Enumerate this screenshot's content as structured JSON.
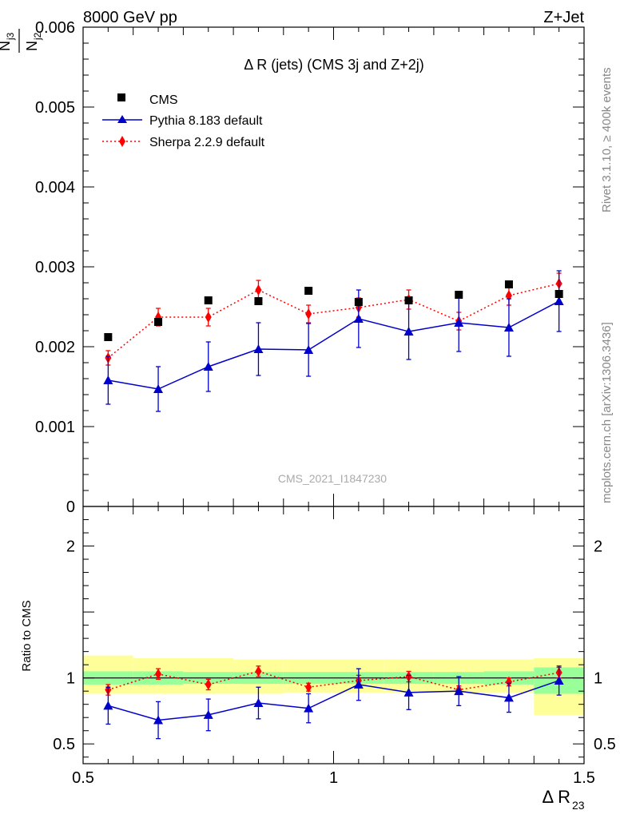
{
  "header": {
    "left": "8000 GeV pp",
    "right": "Z+Jet"
  },
  "side_labels": {
    "rivet": "Rivet 3.1.10, ≥ 400k events",
    "mcplots": "mcplots.cern.ch [arXiv:1306.3436]"
  },
  "legend": {
    "cms": "CMS",
    "pythia": "Pythia 8.183 default",
    "sherpa": "Sherpa 2.2.9 default"
  },
  "colors": {
    "pythia": "#0000cc",
    "sherpa": "#ff0000",
    "data": "#000000",
    "band_inner": "#99ff99",
    "band_outer": "#ffff99"
  },
  "chart_data": [
    {
      "type": "scatter",
      "panel": "main",
      "title": "Δ R (jets) (CMS 3j and Z+2j)",
      "watermark": "CMS_2021_I1847230",
      "ylabel_top": "N",
      "ylabel_top_sub": "j3",
      "ylabel_bottom": "N",
      "ylabel_bottom_sub": "j2",
      "xlim": [
        0.5,
        1.5
      ],
      "ylim": [
        0,
        0.006
      ],
      "y_ticks": [
        {
          "v": 0,
          "label": "0"
        },
        {
          "v": 0.001,
          "label": "0.001"
        },
        {
          "v": 0.002,
          "label": "0.002"
        },
        {
          "v": 0.003,
          "label": "0.003"
        },
        {
          "v": 0.004,
          "label": "0.004"
        },
        {
          "v": 0.005,
          "label": "0.005"
        },
        {
          "v": 0.006,
          "label": "0.006"
        }
      ],
      "x": [
        0.55,
        0.65,
        0.75,
        0.85,
        0.95,
        1.05,
        1.15,
        1.25,
        1.35,
        1.45
      ],
      "series": [
        {
          "name": "CMS",
          "values": [
            0.00212,
            0.00231,
            0.00258,
            0.00257,
            0.0027,
            0.00256,
            0.00258,
            0.00265,
            0.00278,
            0.00266
          ]
        },
        {
          "name": "Pythia 8.183 default",
          "values": [
            0.00158,
            0.00147,
            0.00175,
            0.00197,
            0.00196,
            0.00235,
            0.00219,
            0.0023,
            0.00224,
            0.00257
          ],
          "errors": [
            0.0003,
            0.00028,
            0.00031,
            0.00033,
            0.00033,
            0.00036,
            0.00035,
            0.00036,
            0.00036,
            0.00038
          ]
        },
        {
          "name": "Sherpa 2.2.9 default",
          "values": [
            0.00186,
            0.00237,
            0.00237,
            0.00271,
            0.00241,
            0.00249,
            0.00259,
            0.00232,
            0.00264,
            0.00279
          ],
          "errors": [
            9e-05,
            0.00011,
            0.00011,
            0.00012,
            0.00011,
            0.00012,
            0.00012,
            0.00011,
            0.00012,
            0.00013
          ]
        }
      ]
    },
    {
      "type": "scatter",
      "panel": "ratio",
      "ylabel": "Ratio to CMS",
      "xlabel": "Δ R",
      "xlabel_sub": "23",
      "xlim": [
        0.5,
        1.5
      ],
      "ylim": [
        0.35,
        2.3
      ],
      "x_ticks": [
        {
          "v": 0.5,
          "label": "0.5"
        },
        {
          "v": 1.0,
          "label": "1"
        },
        {
          "v": 1.5,
          "label": "1.5"
        }
      ],
      "y_ticks": [
        {
          "v": 0.5,
          "label": "0.5"
        },
        {
          "v": 1.0,
          "label": "1"
        },
        {
          "v": 2.0,
          "label": "2"
        }
      ],
      "reference_line": 1.0,
      "bands": [
        {
          "x0": 0.5,
          "x1": 0.6,
          "inner": [
            0.95,
            1.05
          ],
          "outer": [
            0.88,
            1.17
          ]
        },
        {
          "x0": 0.6,
          "x1": 0.7,
          "inner": [
            0.95,
            1.05
          ],
          "outer": [
            0.88,
            1.15
          ]
        },
        {
          "x0": 0.7,
          "x1": 0.8,
          "inner": [
            0.955,
            1.045
          ],
          "outer": [
            0.88,
            1.15
          ]
        },
        {
          "x0": 0.8,
          "x1": 0.9,
          "inner": [
            0.955,
            1.045
          ],
          "outer": [
            0.88,
            1.14
          ]
        },
        {
          "x0": 0.9,
          "x1": 1.0,
          "inner": [
            0.955,
            1.045
          ],
          "outer": [
            0.89,
            1.14
          ]
        },
        {
          "x0": 1.0,
          "x1": 1.1,
          "inner": [
            0.955,
            1.045
          ],
          "outer": [
            0.89,
            1.14
          ]
        },
        {
          "x0": 1.1,
          "x1": 1.2,
          "inner": [
            0.955,
            1.045
          ],
          "outer": [
            0.89,
            1.14
          ]
        },
        {
          "x0": 1.2,
          "x1": 1.3,
          "inner": [
            0.955,
            1.045
          ],
          "outer": [
            0.89,
            1.14
          ]
        },
        {
          "x0": 1.3,
          "x1": 1.4,
          "inner": [
            0.95,
            1.05
          ],
          "outer": [
            0.89,
            1.14
          ]
        },
        {
          "x0": 1.4,
          "x1": 1.5,
          "inner": [
            0.88,
            1.08
          ],
          "outer": [
            0.72,
            1.15
          ]
        }
      ],
      "x": [
        0.55,
        0.65,
        0.75,
        0.85,
        0.95,
        1.05,
        1.15,
        1.25,
        1.35,
        1.45
      ],
      "series": [
        {
          "name": "Pythia 8.183 default",
          "values": [
            0.79,
            0.68,
            0.72,
            0.81,
            0.77,
            0.95,
            0.89,
            0.9,
            0.85,
            0.98
          ],
          "errors": [
            0.14,
            0.14,
            0.12,
            0.12,
            0.11,
            0.12,
            0.13,
            0.11,
            0.11,
            0.11
          ]
        },
        {
          "name": "Sherpa 2.2.9 default",
          "values": [
            0.91,
            1.03,
            0.95,
            1.05,
            0.93,
            0.98,
            1.01,
            0.91,
            0.97,
            1.04
          ],
          "errors": [
            0.04,
            0.04,
            0.04,
            0.04,
            0.03,
            0.04,
            0.04,
            0.03,
            0.03,
            0.04
          ]
        }
      ]
    }
  ]
}
